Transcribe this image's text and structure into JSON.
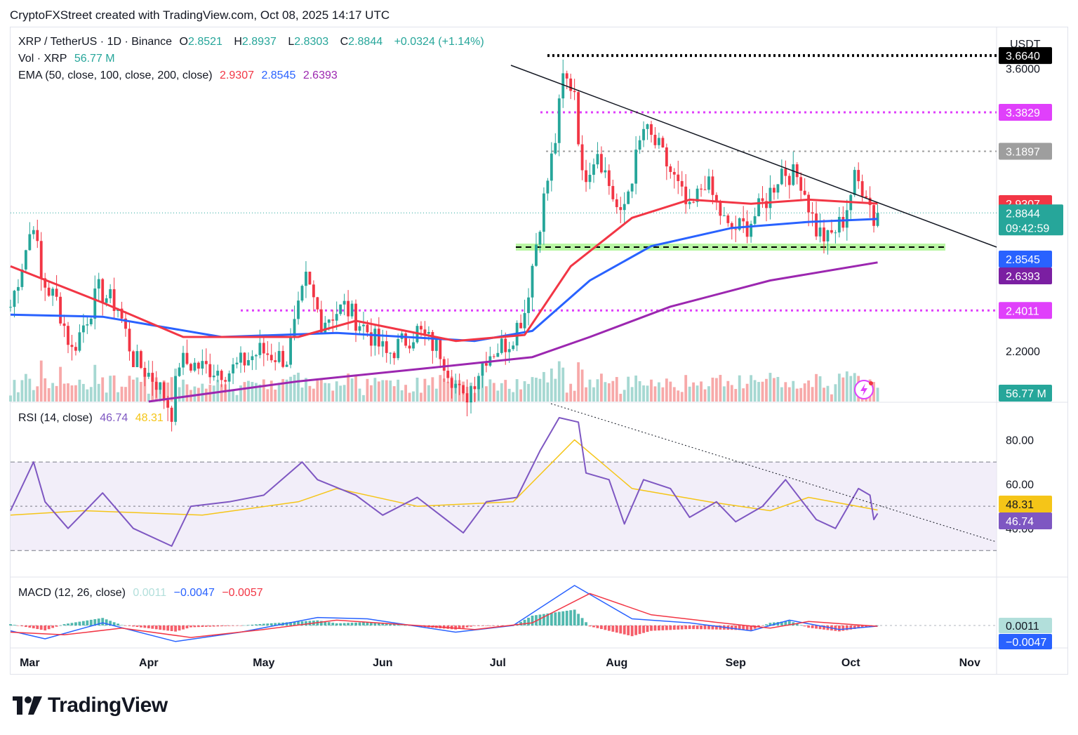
{
  "header": "CryptoFXStreet created with TradingView.com, Oct 08, 2025 14:17 UTC",
  "legend": {
    "symbol": "XRP / TetherUS · 1D · Binance",
    "o_label": "O",
    "o": "2.8521",
    "h_label": "H",
    "h": "2.8937",
    "l_label": "L",
    "l": "2.8303",
    "c_label": "C",
    "c": "2.8844",
    "change": "+0.0324 (+1.14%)",
    "vol_label": "Vol · XRP",
    "vol": "56.77 M",
    "ema_label": "EMA (50, close, 100, close, 200, close)",
    "ema50": "2.9307",
    "ema100": "2.8545",
    "ema200": "2.6393",
    "rsi_label": "RSI (14, close)",
    "rsi": "46.74",
    "rsi_ma": "48.31",
    "macd_label": "MACD (12, 26, close)",
    "macd_hist": "0.0011",
    "macd": "−0.0047",
    "macd_signal": "−0.0057"
  },
  "axis": {
    "currency": "USDT",
    "price_ticks": [
      "3.6000",
      "2.2000"
    ],
    "rsi_ticks": [
      "80.00",
      "60.00",
      "40.00"
    ],
    "months": [
      "Mar",
      "Apr",
      "May",
      "Jun",
      "Jul",
      "Aug",
      "Sep",
      "Oct",
      "Nov"
    ],
    "countdown": "09:42:59"
  },
  "price_labels": [
    {
      "text": "3.6640",
      "price": 3.664,
      "bg": "#000000",
      "fg": "#ffffff"
    },
    {
      "text": "3.3829",
      "price": 3.3829,
      "bg": "#e040fb",
      "fg": "#ffffff"
    },
    {
      "text": "3.1897",
      "price": 3.1897,
      "bg": "#9e9e9e",
      "fg": "#ffffff"
    },
    {
      "text": "2.9307",
      "price": 2.9307,
      "bg": "#f23645",
      "fg": "#ffffff"
    },
    {
      "text": "2.8844",
      "price": 2.8844,
      "bg": "#26a69a",
      "fg": "#ffffff"
    },
    {
      "text": "2.8545",
      "price": 2.8545,
      "bg": "#2962ff",
      "fg": "#ffffff"
    },
    {
      "text": "2.6393",
      "price": 2.6393,
      "bg": "#7b1fa2",
      "fg": "#ffffff"
    },
    {
      "text": "2.4011",
      "price": 2.4011,
      "bg": "#e040fb",
      "fg": "#ffffff"
    },
    {
      "text": "56.77 M",
      "price": null,
      "bg": "#26a69a",
      "fg": "#ffffff"
    }
  ],
  "rsi_labels": [
    {
      "text": "48.31",
      "value": 48.31,
      "bg": "#f5c518",
      "fg": "#131722"
    },
    {
      "text": "46.74",
      "value": 46.74,
      "bg": "#7e57c2",
      "fg": "#ffffff"
    }
  ],
  "macd_labels": [
    {
      "text": "0.0011",
      "bg": "#b2dfdb",
      "fg": "#131722"
    },
    {
      "text": "−0.0047",
      "bg": "#2962ff",
      "fg": "#ffffff"
    }
  ],
  "brand": "TradingView",
  "chart_data": {
    "type": "candlestick",
    "timeframe": "1D",
    "x_range": [
      "2025-02-24",
      "2025-11-08"
    ],
    "price_scale": {
      "min": 1.95,
      "max": 3.8
    },
    "horizontal_levels": [
      {
        "price": 3.664,
        "style": "dotted",
        "color": "#000000"
      },
      {
        "price": 3.3829,
        "style": "dotted",
        "color": "#e040fb"
      },
      {
        "price": 3.1897,
        "style": "dotted",
        "color": "#9e9e9e"
      },
      {
        "price": 2.715,
        "style": "dashed",
        "color": "#000000",
        "zone": "#b9f6a4"
      },
      {
        "price": 2.4011,
        "style": "dotted",
        "color": "#e040fb"
      }
    ],
    "trendline": {
      "from": [
        "2025-07-01",
        3.95
      ],
      "to": [
        "2025-11-08",
        2.86
      ]
    },
    "close_series": [
      {
        "d": "2025-02-24",
        "c": 2.42
      },
      {
        "d": "2025-03-02",
        "c": 2.85
      },
      {
        "d": "2025-03-04",
        "c": 2.55
      },
      {
        "d": "2025-03-08",
        "c": 2.45
      },
      {
        "d": "2025-03-12",
        "c": 2.2
      },
      {
        "d": "2025-03-19",
        "c": 2.5
      },
      {
        "d": "2025-03-24",
        "c": 2.42
      },
      {
        "d": "2025-03-28",
        "c": 2.16
      },
      {
        "d": "2025-04-03",
        "c": 2.05
      },
      {
        "d": "2025-04-07",
        "c": 1.9
      },
      {
        "d": "2025-04-09",
        "c": 2.15
      },
      {
        "d": "2025-04-15",
        "c": 2.12
      },
      {
        "d": "2025-04-22",
        "c": 2.1
      },
      {
        "d": "2025-04-30",
        "c": 2.2
      },
      {
        "d": "2025-05-07",
        "c": 2.16
      },
      {
        "d": "2025-05-12",
        "c": 2.55
      },
      {
        "d": "2025-05-16",
        "c": 2.35
      },
      {
        "d": "2025-05-22",
        "c": 2.42
      },
      {
        "d": "2025-05-28",
        "c": 2.3
      },
      {
        "d": "2025-06-02",
        "c": 2.18
      },
      {
        "d": "2025-06-10",
        "c": 2.3
      },
      {
        "d": "2025-06-16",
        "c": 2.2
      },
      {
        "d": "2025-06-22",
        "c": 1.95
      },
      {
        "d": "2025-06-28",
        "c": 2.18
      },
      {
        "d": "2025-07-04",
        "c": 2.25
      },
      {
        "d": "2025-07-08",
        "c": 2.4
      },
      {
        "d": "2025-07-12",
        "c": 2.85
      },
      {
        "d": "2025-07-16",
        "c": 3.25
      },
      {
        "d": "2025-07-18",
        "c": 3.55
      },
      {
        "d": "2025-07-21",
        "c": 3.5
      },
      {
        "d": "2025-07-23",
        "c": 3.05
      },
      {
        "d": "2025-07-27",
        "c": 3.2
      },
      {
        "d": "2025-08-02",
        "c": 2.85
      },
      {
        "d": "2025-08-04",
        "c": 3.0
      },
      {
        "d": "2025-08-08",
        "c": 3.3
      },
      {
        "d": "2025-08-12",
        "c": 3.2
      },
      {
        "d": "2025-08-16",
        "c": 3.05
      },
      {
        "d": "2025-08-20",
        "c": 2.88
      },
      {
        "d": "2025-08-24",
        "c": 3.05
      },
      {
        "d": "2025-08-30",
        "c": 2.8
      },
      {
        "d": "2025-09-04",
        "c": 2.82
      },
      {
        "d": "2025-09-09",
        "c": 2.95
      },
      {
        "d": "2025-09-13",
        "c": 3.1
      },
      {
        "d": "2025-09-18",
        "c": 3.05
      },
      {
        "d": "2025-09-22",
        "c": 2.8
      },
      {
        "d": "2025-09-25",
        "c": 2.75
      },
      {
        "d": "2025-09-29",
        "c": 2.85
      },
      {
        "d": "2025-10-02",
        "c": 3.05
      },
      {
        "d": "2025-10-05",
        "c": 3.0
      },
      {
        "d": "2025-10-07",
        "c": 2.85
      },
      {
        "d": "2025-10-08",
        "c": 2.8844
      }
    ],
    "ema50": [
      [
        "2025-02-24",
        2.62
      ],
      [
        "2025-03-20",
        2.44
      ],
      [
        "2025-04-10",
        2.27
      ],
      [
        "2025-05-10",
        2.27
      ],
      [
        "2025-05-25",
        2.35
      ],
      [
        "2025-06-20",
        2.25
      ],
      [
        "2025-07-08",
        2.28
      ],
      [
        "2025-07-20",
        2.62
      ],
      [
        "2025-08-05",
        2.86
      ],
      [
        "2025-08-20",
        2.95
      ],
      [
        "2025-09-05",
        2.93
      ],
      [
        "2025-09-20",
        2.95
      ],
      [
        "2025-10-08",
        2.9307
      ]
    ],
    "ema100": [
      [
        "2025-02-24",
        2.38
      ],
      [
        "2025-03-20",
        2.37
      ],
      [
        "2025-04-20",
        2.27
      ],
      [
        "2025-05-20",
        2.29
      ],
      [
        "2025-06-25",
        2.25
      ],
      [
        "2025-07-10",
        2.3
      ],
      [
        "2025-07-25",
        2.55
      ],
      [
        "2025-08-10",
        2.72
      ],
      [
        "2025-08-31",
        2.81
      ],
      [
        "2025-09-20",
        2.84
      ],
      [
        "2025-10-08",
        2.8545
      ]
    ],
    "ema200": [
      [
        "2025-04-01",
        1.95
      ],
      [
        "2025-05-10",
        2.05
      ],
      [
        "2025-06-15",
        2.12
      ],
      [
        "2025-07-10",
        2.17
      ],
      [
        "2025-07-25",
        2.27
      ],
      [
        "2025-08-15",
        2.42
      ],
      [
        "2025-09-10",
        2.55
      ],
      [
        "2025-10-08",
        2.6393
      ]
    ],
    "volume_max": 100,
    "rsi": {
      "levels": [
        70,
        50,
        30
      ],
      "trendline": {
        "from": [
          "2025-07-17",
          90
        ],
        "to": [
          "2025-11-08",
          40
        ]
      },
      "values": [
        [
          "2025-02-24",
          48
        ],
        [
          "2025-03-02",
          70
        ],
        [
          "2025-03-05",
          52
        ],
        [
          "2025-03-11",
          40
        ],
        [
          "2025-03-20",
          56
        ],
        [
          "2025-03-28",
          40
        ],
        [
          "2025-04-07",
          32
        ],
        [
          "2025-04-12",
          50
        ],
        [
          "2025-04-22",
          52
        ],
        [
          "2025-05-01",
          55
        ],
        [
          "2025-05-11",
          70
        ],
        [
          "2025-05-15",
          62
        ],
        [
          "2025-05-25",
          55
        ],
        [
          "2025-06-01",
          46
        ],
        [
          "2025-06-10",
          54
        ],
        [
          "2025-06-22",
          38
        ],
        [
          "2025-06-28",
          52
        ],
        [
          "2025-07-06",
          54
        ],
        [
          "2025-07-12",
          75
        ],
        [
          "2025-07-17",
          90
        ],
        [
          "2025-07-22",
          88
        ],
        [
          "2025-07-24",
          65
        ],
        [
          "2025-07-30",
          62
        ],
        [
          "2025-08-03",
          42
        ],
        [
          "2025-08-08",
          62
        ],
        [
          "2025-08-15",
          58
        ],
        [
          "2025-08-20",
          45
        ],
        [
          "2025-08-27",
          52
        ],
        [
          "2025-09-01",
          43
        ],
        [
          "2025-09-08",
          50
        ],
        [
          "2025-09-14",
          62
        ],
        [
          "2025-09-22",
          44
        ],
        [
          "2025-09-27",
          40
        ],
        [
          "2025-10-03",
          58
        ],
        [
          "2025-10-06",
          55
        ],
        [
          "2025-10-07",
          44
        ],
        [
          "2025-10-08",
          46.74
        ]
      ],
      "ma": [
        [
          "2025-02-24",
          46
        ],
        [
          "2025-03-15",
          48
        ],
        [
          "2025-04-15",
          46
        ],
        [
          "2025-05-10",
          52
        ],
        [
          "2025-05-20",
          58
        ],
        [
          "2025-06-10",
          50
        ],
        [
          "2025-07-05",
          52
        ],
        [
          "2025-07-21",
          80
        ],
        [
          "2025-08-05",
          58
        ],
        [
          "2025-08-25",
          52
        ],
        [
          "2025-09-10",
          48
        ],
        [
          "2025-09-20",
          54
        ],
        [
          "2025-10-08",
          48.31
        ]
      ]
    },
    "macd": {
      "macd": [
        [
          "2025-02-24",
          -0.04
        ],
        [
          "2025-03-05",
          -0.1
        ],
        [
          "2025-03-20",
          0.02
        ],
        [
          "2025-04-08",
          -0.12
        ],
        [
          "2025-04-25",
          -0.05
        ],
        [
          "2025-05-15",
          0.06
        ],
        [
          "2025-05-28",
          0.05
        ],
        [
          "2025-06-20",
          -0.05
        ],
        [
          "2025-07-05",
          0.0
        ],
        [
          "2025-07-21",
          0.3
        ],
        [
          "2025-08-05",
          0.05
        ],
        [
          "2025-08-20",
          0.02
        ],
        [
          "2025-09-05",
          -0.04
        ],
        [
          "2025-09-15",
          0.04
        ],
        [
          "2025-09-28",
          -0.03
        ],
        [
          "2025-10-08",
          -0.0047
        ]
      ],
      "signal": [
        [
          "2025-02-24",
          -0.05
        ],
        [
          "2025-03-10",
          -0.07
        ],
        [
          "2025-03-25",
          -0.02
        ],
        [
          "2025-04-12",
          -0.09
        ],
        [
          "2025-05-01",
          -0.03
        ],
        [
          "2025-05-20",
          0.04
        ],
        [
          "2025-06-10",
          0.0
        ],
        [
          "2025-06-25",
          -0.03
        ],
        [
          "2025-07-10",
          0.02
        ],
        [
          "2025-07-25",
          0.24
        ],
        [
          "2025-08-10",
          0.08
        ],
        [
          "2025-08-25",
          0.03
        ],
        [
          "2025-09-10",
          -0.02
        ],
        [
          "2025-09-20",
          0.03
        ],
        [
          "2025-10-08",
          -0.0057
        ]
      ]
    }
  }
}
